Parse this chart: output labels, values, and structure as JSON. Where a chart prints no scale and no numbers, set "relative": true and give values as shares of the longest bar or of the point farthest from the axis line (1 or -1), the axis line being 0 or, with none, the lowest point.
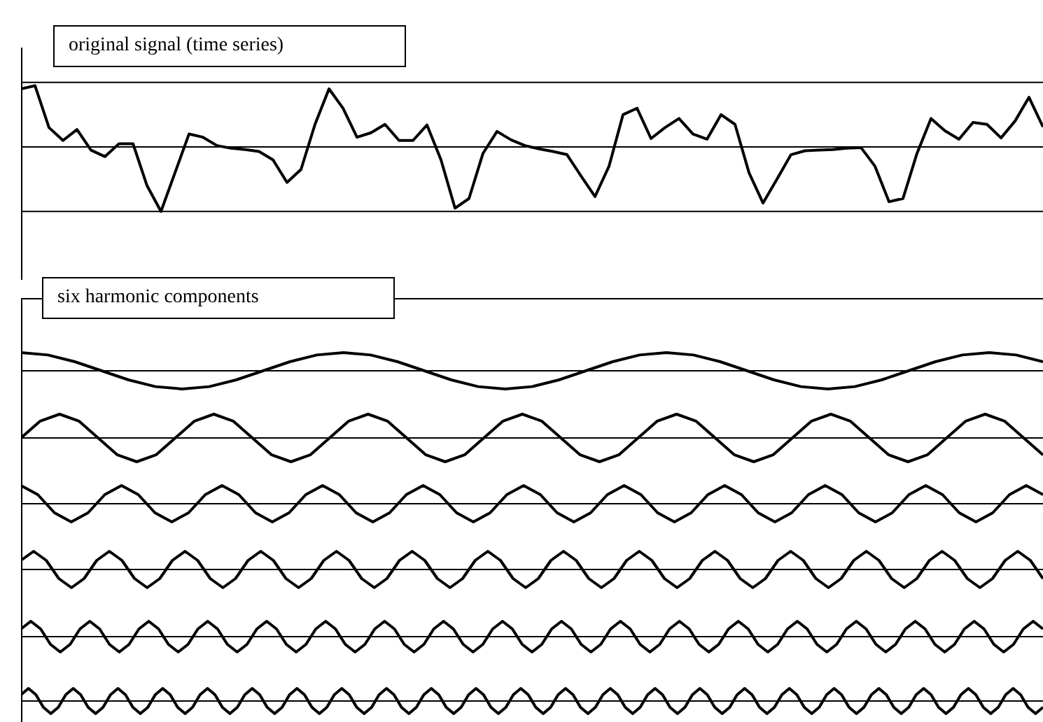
{
  "chart_data": [
    {
      "type": "line",
      "title": "original signal (time series)",
      "relative": true,
      "categories": [
        null,
        null,
        null,
        null,
        null,
        null,
        null,
        null,
        null,
        null,
        null,
        null,
        null,
        null,
        null,
        null,
        null,
        null,
        null,
        null,
        null,
        null,
        null,
        null,
        null,
        null,
        null,
        null,
        null,
        null,
        null,
        null,
        null,
        null,
        null,
        null,
        null,
        null,
        null,
        null,
        null,
        null,
        null,
        null,
        null,
        null,
        null,
        null,
        null,
        null,
        null,
        null,
        null,
        null,
        null,
        null,
        null,
        null,
        null,
        null,
        null,
        null,
        null,
        null,
        null,
        null,
        null,
        null,
        null,
        null,
        null,
        null,
        null,
        null
      ],
      "series": [
        {
          "color": "#000000",
          "values": [
            0.9,
            0.95,
            0.3,
            0.1,
            0.27,
            -0.05,
            -0.15,
            0.05,
            0.05,
            -0.6,
            -1,
            -0.4,
            0.2,
            0.15,
            0.02,
            -0.02,
            -0.04,
            -0.07,
            -0.2,
            -0.55,
            -0.35,
            0.35,
            0.9,
            0.6,
            0.15,
            0.22,
            0.35,
            0.1,
            0.1,
            0.34,
            -0.2,
            -0.95,
            -0.8,
            -0.1,
            0.24,
            0.11,
            0.02,
            -0.03,
            -0.07,
            -0.12,
            -0.45,
            -0.77,
            -0.3,
            0.5,
            0.6,
            0.13,
            0.3,
            0.44,
            0.2,
            0.12,
            0.5,
            0.35,
            -0.4,
            -0.87,
            -0.5,
            -0.12,
            -0.06,
            -0.05,
            -0.04,
            -0.02,
            -0.01,
            -0.3,
            -0.85,
            -0.8,
            -0.1,
            0.44,
            0.25,
            0.12,
            0.38,
            0.35,
            0.14,
            0.4,
            0.77,
            0.31
          ]
        }
      ],
      "ref_lines": [
        {
          "axis": "y",
          "value": 1
        },
        {
          "axis": "y",
          "value": -1
        }
      ]
    },
    {
      "type": "line",
      "title": "six harmonic components",
      "relative": true,
      "categories": [
        null,
        null,
        null,
        null,
        null,
        null,
        null,
        null,
        null,
        null,
        null,
        null,
        null,
        null,
        null,
        null,
        null,
        null,
        null,
        null,
        null,
        null,
        null,
        null,
        null,
        null,
        null,
        null,
        null,
        null,
        null,
        null,
        null,
        null,
        null,
        null,
        null,
        null,
        null
      ],
      "series": [
        {
          "color": "#000000",
          "values": [
            1,
            0.87,
            0.5,
            0,
            -0.5,
            -0.87,
            -1,
            -0.87,
            -0.5,
            0,
            0.5,
            0.87,
            1,
            0.87,
            0.5,
            0,
            -0.5,
            -0.87,
            -1,
            -0.87,
            -0.5,
            0,
            0.5,
            0.87,
            1,
            0.87,
            0.5,
            0,
            -0.5,
            -0.87,
            -1,
            -0.87,
            -0.5,
            0,
            0.5,
            0.87,
            1,
            0.87,
            0.5
          ]
        }
      ]
    },
    {
      "type": "line",
      "relative": true,
      "categories": [
        null,
        null,
        null,
        null,
        null,
        null,
        null,
        null,
        null,
        null,
        null,
        null,
        null,
        null,
        null,
        null,
        null,
        null,
        null,
        null,
        null,
        null,
        null,
        null,
        null,
        null,
        null,
        null,
        null,
        null,
        null,
        null,
        null,
        null,
        null,
        null,
        null,
        null,
        null,
        null,
        null,
        null,
        null,
        null,
        null,
        null,
        null,
        null,
        null,
        null,
        null,
        null,
        null,
        null
      ],
      "series": [
        {
          "color": "#000000",
          "values": [
            0,
            0.71,
            1,
            0.71,
            0,
            -0.71,
            -1,
            -0.71,
            0,
            0.71,
            1,
            0.71,
            0,
            -0.71,
            -1,
            -0.71,
            0,
            0.71,
            1,
            0.71,
            0,
            -0.71,
            -1,
            -0.71,
            0,
            0.71,
            1,
            0.71,
            0,
            -0.71,
            -1,
            -0.71,
            0,
            0.71,
            1,
            0.71,
            0,
            -0.71,
            -1,
            -0.71,
            0,
            0.71,
            1,
            0.71,
            0,
            -0.71,
            -1,
            -0.71,
            0,
            0.71,
            1,
            0.71,
            0,
            -0.71
          ]
        }
      ]
    },
    {
      "type": "line",
      "relative": true,
      "categories": [
        null,
        null,
        null,
        null,
        null,
        null,
        null,
        null,
        null,
        null,
        null,
        null,
        null,
        null,
        null,
        null,
        null,
        null,
        null,
        null,
        null,
        null,
        null,
        null,
        null,
        null,
        null,
        null,
        null,
        null,
        null,
        null,
        null,
        null,
        null,
        null,
        null,
        null,
        null,
        null,
        null,
        null,
        null,
        null,
        null,
        null,
        null,
        null,
        null,
        null,
        null,
        null,
        null,
        null,
        null,
        null,
        null,
        null,
        null,
        null,
        null,
        null
      ],
      "series": [
        {
          "color": "#000000",
          "values": [
            1,
            0.5,
            -0.5,
            -1,
            -0.5,
            0.5,
            1,
            0.5,
            -0.5,
            -1,
            -0.5,
            0.5,
            1,
            0.5,
            -0.5,
            -1,
            -0.5,
            0.5,
            1,
            0.5,
            -0.5,
            -1,
            -0.5,
            0.5,
            1,
            0.5,
            -0.5,
            -1,
            -0.5,
            0.5,
            1,
            0.5,
            -0.5,
            -1,
            -0.5,
            0.5,
            1,
            0.5,
            -0.5,
            -1,
            -0.5,
            0.5,
            1,
            0.5,
            -0.5,
            -1,
            -0.5,
            0.5,
            1,
            0.5,
            -0.5,
            -1,
            -0.5,
            0.5,
            1,
            0.5,
            -0.5,
            -1,
            -0.5,
            0.5,
            1,
            0.5
          ]
        }
      ]
    },
    {
      "type": "line",
      "relative": true,
      "categories": [
        null,
        null,
        null,
        null,
        null,
        null,
        null,
        null,
        null,
        null,
        null,
        null,
        null,
        null,
        null,
        null,
        null,
        null,
        null,
        null,
        null,
        null,
        null,
        null,
        null,
        null,
        null,
        null,
        null,
        null,
        null,
        null,
        null,
        null,
        null,
        null,
        null,
        null,
        null,
        null,
        null,
        null,
        null,
        null,
        null,
        null,
        null,
        null,
        null,
        null,
        null,
        null,
        null,
        null,
        null,
        null,
        null,
        null,
        null,
        null,
        null,
        null,
        null,
        null,
        null,
        null,
        null,
        null,
        null,
        null,
        null,
        null,
        null,
        null,
        null,
        null,
        null,
        null,
        null,
        null,
        null,
        null
      ],
      "series": [
        {
          "color": "#000000",
          "values": [
            0.5,
            1,
            0.5,
            -0.5,
            -1,
            -0.5,
            0.5,
            1,
            0.5,
            -0.5,
            -1,
            -0.5,
            0.5,
            1,
            0.5,
            -0.5,
            -1,
            -0.5,
            0.5,
            1,
            0.5,
            -0.5,
            -1,
            -0.5,
            0.5,
            1,
            0.5,
            -0.5,
            -1,
            -0.5,
            0.5,
            1,
            0.5,
            -0.5,
            -1,
            -0.5,
            0.5,
            1,
            0.5,
            -0.5,
            -1,
            -0.5,
            0.5,
            1,
            0.5,
            -0.5,
            -1,
            -0.5,
            0.5,
            1,
            0.5,
            -0.5,
            -1,
            -0.5,
            0.5,
            1,
            0.5,
            -0.5,
            -1,
            -0.5,
            0.5,
            1,
            0.5,
            -0.5,
            -1,
            -0.5,
            0.5,
            1,
            0.5,
            -0.5,
            -1,
            -0.5,
            0.5,
            1,
            0.5,
            -0.5,
            -1,
            -0.5,
            0.5,
            1,
            0.5,
            -0.5
          ]
        }
      ]
    },
    {
      "type": "line",
      "relative": true,
      "categories": [
        null,
        null,
        null,
        null,
        null,
        null,
        null,
        null,
        null,
        null,
        null,
        null,
        null,
        null,
        null,
        null,
        null,
        null,
        null,
        null,
        null,
        null,
        null,
        null,
        null,
        null,
        null,
        null,
        null,
        null,
        null,
        null,
        null,
        null,
        null,
        null,
        null,
        null,
        null,
        null,
        null,
        null,
        null,
        null,
        null,
        null,
        null,
        null,
        null,
        null,
        null,
        null,
        null,
        null,
        null,
        null,
        null,
        null,
        null,
        null,
        null,
        null,
        null,
        null,
        null,
        null,
        null,
        null,
        null,
        null,
        null,
        null,
        null,
        null,
        null,
        null,
        null,
        null,
        null,
        null,
        null,
        null,
        null,
        null,
        null,
        null,
        null,
        null,
        null,
        null,
        null,
        null,
        null,
        null,
        null,
        null,
        null,
        null,
        null,
        null,
        null,
        null,
        null,
        null,
        null
      ],
      "series": [
        {
          "color": "#000000",
          "values": [
            0.5,
            1,
            0.5,
            -0.5,
            -1,
            -0.5,
            0.5,
            1,
            0.5,
            -0.5,
            -1,
            -0.5,
            0.5,
            1,
            0.5,
            -0.5,
            -1,
            -0.5,
            0.5,
            1,
            0.5,
            -0.5,
            -1,
            -0.5,
            0.5,
            1,
            0.5,
            -0.5,
            -1,
            -0.5,
            0.5,
            1,
            0.5,
            -0.5,
            -1,
            -0.5,
            0.5,
            1,
            0.5,
            -0.5,
            -1,
            -0.5,
            0.5,
            1,
            0.5,
            -0.5,
            -1,
            -0.5,
            0.5,
            1,
            0.5,
            -0.5,
            -1,
            -0.5,
            0.5,
            1,
            0.5,
            -0.5,
            -1,
            -0.5,
            0.5,
            1,
            0.5,
            -0.5,
            -1,
            -0.5,
            0.5,
            1,
            0.5,
            -0.5,
            -1,
            -0.5,
            0.5,
            1,
            0.5,
            -0.5,
            -1,
            -0.5,
            0.5,
            1,
            0.5,
            -0.5,
            -1,
            -0.5,
            0.5,
            1,
            0.5,
            -0.5,
            -1,
            -0.5,
            0.5,
            1,
            0.5,
            -0.5,
            -1,
            -0.5,
            0.5,
            1,
            0.5,
            -0.5,
            -1,
            -0.5,
            0.5,
            1,
            0.5
          ]
        }
      ]
    },
    {
      "type": "line",
      "relative": true,
      "categories": [
        null,
        null,
        null,
        null,
        null,
        null,
        null,
        null,
        null,
        null,
        null,
        null,
        null,
        null,
        null,
        null,
        null,
        null,
        null,
        null,
        null,
        null,
        null,
        null,
        null,
        null,
        null,
        null,
        null,
        null,
        null,
        null,
        null,
        null,
        null,
        null,
        null,
        null,
        null,
        null,
        null,
        null,
        null,
        null,
        null,
        null,
        null,
        null,
        null,
        null,
        null,
        null,
        null,
        null,
        null,
        null,
        null,
        null,
        null,
        null,
        null,
        null,
        null,
        null,
        null,
        null,
        null,
        null,
        null,
        null,
        null,
        null,
        null,
        null,
        null,
        null,
        null,
        null,
        null,
        null,
        null,
        null,
        null,
        null,
        null,
        null,
        null,
        null,
        null,
        null,
        null,
        null,
        null,
        null,
        null,
        null,
        null,
        null,
        null,
        null,
        null,
        null,
        null,
        null,
        null,
        null,
        null,
        null,
        null,
        null,
        null,
        null,
        null,
        null,
        null,
        null,
        null,
        null,
        null,
        null,
        null,
        null,
        null,
        null,
        null,
        null,
        null,
        null,
        null,
        null,
        null,
        null,
        null,
        null,
        null,
        null,
        null,
        null
      ],
      "series": [
        {
          "color": "#000000",
          "values": [
            0.5,
            1,
            0.5,
            -0.5,
            -1,
            -0.5,
            0.5,
            1,
            0.5,
            -0.5,
            -1,
            -0.5,
            0.5,
            1,
            0.5,
            -0.5,
            -1,
            -0.5,
            0.5,
            1,
            0.5,
            -0.5,
            -1,
            -0.5,
            0.5,
            1,
            0.5,
            -0.5,
            -1,
            -0.5,
            0.5,
            1,
            0.5,
            -0.5,
            -1,
            -0.5,
            0.5,
            1,
            0.5,
            -0.5,
            -1,
            -0.5,
            0.5,
            1,
            0.5,
            -0.5,
            -1,
            -0.5,
            0.5,
            1,
            0.5,
            -0.5,
            -1,
            -0.5,
            0.5,
            1,
            0.5,
            -0.5,
            -1,
            -0.5,
            0.5,
            1,
            0.5,
            -0.5,
            -1,
            -0.5,
            0.5,
            1,
            0.5,
            -0.5,
            -1,
            -0.5,
            0.5,
            1,
            0.5,
            -0.5,
            -1,
            -0.5,
            0.5,
            1,
            0.5,
            -0.5,
            -1,
            -0.5,
            0.5,
            1,
            0.5,
            -0.5,
            -1,
            -0.5,
            0.5,
            1,
            0.5,
            -0.5,
            -1,
            -0.5,
            0.5,
            1,
            0.5,
            -0.5,
            -1,
            -0.5,
            0.5,
            1,
            0.5,
            -0.5,
            -1,
            -0.5,
            0.5,
            1,
            0.5,
            -0.5,
            -1,
            -0.5,
            0.5,
            1,
            0.5,
            -0.5,
            -1,
            -0.5,
            0.5,
            1,
            0.5,
            -0.5,
            -1,
            -0.5,
            0.5,
            1,
            0.5,
            -0.5,
            -1,
            -0.5,
            0.5,
            1,
            0.5,
            -0.5,
            -1,
            -0.5
          ]
        }
      ]
    }
  ]
}
